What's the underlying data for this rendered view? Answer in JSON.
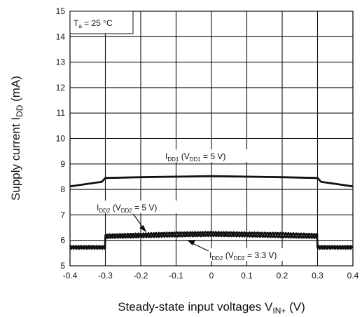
{
  "chart_data": {
    "type": "line",
    "title": "",
    "xlabel": {
      "main": "Steady-state input voltages  V",
      "sub": "IN+",
      "unit": "  (V)"
    },
    "ylabel": {
      "main": "Supply current  I",
      "sub": "DD",
      "unit": "  (mA)"
    },
    "xlim": [
      -0.4,
      0.4
    ],
    "ylim": [
      5,
      15
    ],
    "xticks": [
      "-0.4",
      "-0.3",
      "-0.2",
      "-0.1",
      "0",
      "0.1",
      "0.2",
      "0.3",
      "0.4"
    ],
    "yticks": [
      "5",
      "6",
      "7",
      "8",
      "9",
      "10",
      "11",
      "12",
      "13",
      "14",
      "15"
    ],
    "grid": true,
    "condition": {
      "prefix": "T",
      "sub": "a",
      "suffix": " = 25 °C"
    },
    "series": [
      {
        "name": {
          "i": "I",
          "isub": "DD1",
          "open": " (V",
          "vsub": "DD1",
          "rest": " = 5 V)"
        },
        "x": [
          -0.4,
          -0.35,
          -0.31,
          -0.3,
          -0.2,
          -0.1,
          0.0,
          0.1,
          0.2,
          0.3,
          0.31,
          0.35,
          0.4
        ],
        "y": [
          8.12,
          8.22,
          8.3,
          8.45,
          8.48,
          8.5,
          8.52,
          8.5,
          8.48,
          8.45,
          8.3,
          8.22,
          8.12
        ],
        "noisy": false
      },
      {
        "name": {
          "i": "I",
          "isub": "DD2",
          "open": " (V",
          "vsub": "DD2",
          "rest": " = 5 V)"
        },
        "x": [
          -0.4,
          -0.3,
          -0.3,
          -0.2,
          -0.1,
          0.0,
          0.1,
          0.2,
          0.3,
          0.3,
          0.4
        ],
        "y": [
          5.75,
          5.75,
          6.2,
          6.24,
          6.28,
          6.3,
          6.28,
          6.26,
          6.22,
          5.75,
          5.75
        ],
        "noisy": true
      },
      {
        "name": {
          "i": "I",
          "isub": "DD2",
          "open": " (V",
          "vsub": "DD2",
          "rest": " = 3.3 V)"
        },
        "x": [
          -0.4,
          -0.3,
          -0.3,
          -0.2,
          -0.1,
          0.0,
          0.1,
          0.2,
          0.3,
          0.3,
          0.4
        ],
        "y": [
          5.7,
          5.7,
          6.12,
          6.15,
          6.18,
          6.2,
          6.18,
          6.15,
          6.12,
          5.7,
          5.7
        ],
        "noisy": true
      }
    ]
  }
}
